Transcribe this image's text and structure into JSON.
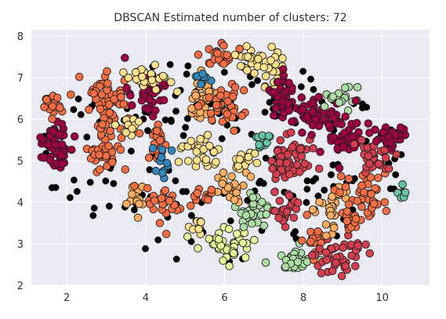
{
  "chart_data": {
    "type": "scatter",
    "title": "DBSCAN Estimated number of clusters: 72",
    "xlabel": "",
    "ylabel": "",
    "xlim": [
      1.1,
      11.2
    ],
    "ylim": [
      2.0,
      8.15
    ],
    "xticks": [
      2,
      4,
      6,
      8,
      10
    ],
    "yticks": [
      2,
      3,
      4,
      5,
      6,
      7,
      8
    ],
    "grid": true,
    "legend": "none",
    "colors": {
      "background": "#eaeaf2",
      "grid": "#ffffff",
      "noise": "#000000",
      "point_edge": "#1f1f1f",
      "palette": [
        "#9e0142",
        "#d53e4f",
        "#f46d43",
        "#fdae61",
        "#fee08b",
        "#e6f598",
        "#abdda4",
        "#66c2a5",
        "#3288bd",
        "#5e4fa2"
      ]
    },
    "regions": [
      {
        "cx": 1.75,
        "cy": 5.35,
        "rx": 0.32,
        "ry": 0.55,
        "n": 55,
        "palette": 0
      },
      {
        "cx": 1.6,
        "cy": 6.3,
        "rx": 0.35,
        "ry": 0.28,
        "n": 18,
        "palette": 2
      },
      {
        "cx": 3.0,
        "cy": 6.45,
        "rx": 0.45,
        "ry": 0.55,
        "n": 55,
        "palette": 2
      },
      {
        "cx": 2.95,
        "cy": 5.3,
        "rx": 0.38,
        "ry": 0.55,
        "n": 42,
        "palette": 2
      },
      {
        "cx": 3.6,
        "cy": 5.85,
        "rx": 0.3,
        "ry": 0.25,
        "n": 12,
        "palette": 4
      },
      {
        "cx": 3.75,
        "cy": 4.1,
        "rx": 0.22,
        "ry": 0.3,
        "n": 12,
        "palette": 3
      },
      {
        "cx": 4.0,
        "cy": 6.6,
        "rx": 0.45,
        "ry": 0.45,
        "n": 35,
        "palette": 0
      },
      {
        "cx": 4.05,
        "cy": 7.05,
        "rx": 0.55,
        "ry": 0.3,
        "n": 25,
        "palette": 4
      },
      {
        "cx": 4.25,
        "cy": 5.4,
        "rx": 0.32,
        "ry": 0.4,
        "n": 25,
        "palette": 2
      },
      {
        "cx": 4.4,
        "cy": 5.0,
        "rx": 0.25,
        "ry": 0.35,
        "n": 14,
        "palette": 8
      },
      {
        "cx": 4.5,
        "cy": 3.95,
        "rx": 0.55,
        "ry": 0.35,
        "n": 30,
        "palette": 2
      },
      {
        "cx": 5.3,
        "cy": 5.2,
        "rx": 0.45,
        "ry": 0.35,
        "n": 28,
        "palette": 4
      },
      {
        "cx": 5.45,
        "cy": 6.55,
        "rx": 0.4,
        "ry": 0.5,
        "n": 32,
        "palette": 3
      },
      {
        "cx": 5.45,
        "cy": 6.95,
        "rx": 0.25,
        "ry": 0.12,
        "n": 8,
        "palette": 8
      },
      {
        "cx": 5.9,
        "cy": 7.55,
        "rx": 0.4,
        "ry": 0.25,
        "n": 24,
        "palette": 2
      },
      {
        "cx": 6.0,
        "cy": 6.45,
        "rx": 0.45,
        "ry": 0.55,
        "n": 40,
        "palette": 2
      },
      {
        "cx": 6.55,
        "cy": 7.45,
        "rx": 0.3,
        "ry": 0.25,
        "n": 16,
        "palette": 4
      },
      {
        "cx": 7.1,
        "cy": 7.2,
        "rx": 0.35,
        "ry": 0.4,
        "n": 22,
        "palette": 4
      },
      {
        "cx": 5.3,
        "cy": 3.45,
        "rx": 0.22,
        "ry": 0.2,
        "n": 8,
        "palette": 4
      },
      {
        "cx": 6.15,
        "cy": 3.0,
        "rx": 0.6,
        "ry": 0.4,
        "n": 40,
        "palette": 5
      },
      {
        "cx": 6.75,
        "cy": 3.75,
        "rx": 0.4,
        "ry": 0.4,
        "n": 28,
        "palette": 6
      },
      {
        "cx": 6.2,
        "cy": 4.4,
        "rx": 0.5,
        "ry": 0.35,
        "n": 24,
        "palette": 3
      },
      {
        "cx": 5.5,
        "cy": 4.2,
        "rx": 0.3,
        "ry": 0.25,
        "n": 12,
        "palette": 2
      },
      {
        "cx": 6.5,
        "cy": 5.0,
        "rx": 0.3,
        "ry": 0.3,
        "n": 14,
        "palette": 4
      },
      {
        "cx": 7.0,
        "cy": 5.45,
        "rx": 0.3,
        "ry": 0.2,
        "n": 12,
        "palette": 7
      },
      {
        "cx": 7.45,
        "cy": 6.6,
        "rx": 0.4,
        "ry": 0.45,
        "n": 35,
        "palette": 0
      },
      {
        "cx": 7.6,
        "cy": 5.0,
        "rx": 0.55,
        "ry": 0.55,
        "n": 55,
        "palette": 1
      },
      {
        "cx": 8.1,
        "cy": 6.1,
        "rx": 0.55,
        "ry": 0.5,
        "n": 45,
        "palette": 0
      },
      {
        "cx": 7.55,
        "cy": 3.85,
        "rx": 0.35,
        "ry": 0.35,
        "n": 22,
        "palette": 1
      },
      {
        "cx": 7.85,
        "cy": 2.55,
        "rx": 0.4,
        "ry": 0.28,
        "n": 35,
        "palette": 6
      },
      {
        "cx": 8.3,
        "cy": 3.05,
        "rx": 0.3,
        "ry": 0.35,
        "n": 18,
        "palette": 2
      },
      {
        "cx": 9.0,
        "cy": 2.8,
        "rx": 0.6,
        "ry": 0.45,
        "n": 45,
        "palette": 1
      },
      {
        "cx": 8.7,
        "cy": 3.9,
        "rx": 0.35,
        "ry": 0.5,
        "n": 28,
        "palette": 3
      },
      {
        "cx": 9.6,
        "cy": 4.15,
        "rx": 0.55,
        "ry": 0.55,
        "n": 45,
        "palette": 2
      },
      {
        "cx": 9.0,
        "cy": 6.5,
        "rx": 0.35,
        "ry": 0.25,
        "n": 16,
        "palette": 6
      },
      {
        "cx": 9.0,
        "cy": 5.6,
        "rx": 0.45,
        "ry": 0.45,
        "n": 38,
        "palette": 0
      },
      {
        "cx": 9.85,
        "cy": 5.1,
        "rx": 0.45,
        "ry": 0.45,
        "n": 35,
        "palette": 1
      },
      {
        "cx": 10.1,
        "cy": 5.65,
        "rx": 0.45,
        "ry": 0.35,
        "n": 30,
        "palette": 0
      },
      {
        "cx": 10.5,
        "cy": 4.25,
        "rx": 0.15,
        "ry": 0.3,
        "n": 8,
        "palette": 7
      },
      {
        "cx": 9.2,
        "cy": 3.55,
        "rx": 0.3,
        "ry": 0.25,
        "n": 14,
        "palette": 2
      }
    ],
    "noise_regions": [
      {
        "cx": 5.9,
        "cy": 5.0,
        "rx": 4.6,
        "ry": 2.5,
        "n": 190
      }
    ]
  }
}
